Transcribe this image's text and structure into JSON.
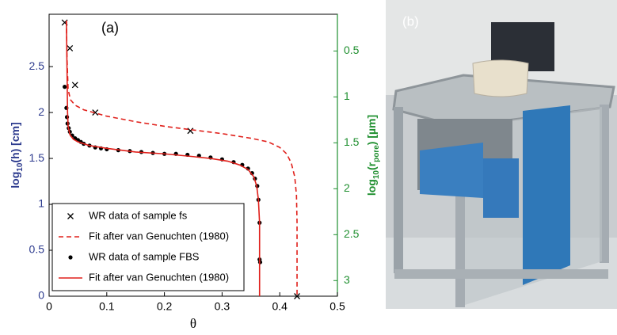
{
  "chart_data": {
    "type": "line",
    "panel_label": "(a)",
    "xlabel": "θ",
    "ylabel_parts": [
      "log",
      "10",
      "(h) [cm]"
    ],
    "y2label_parts": [
      "log",
      "10",
      "(r",
      "pore",
      ") [µm]"
    ],
    "xlim": [
      0,
      0.5
    ],
    "xticks": [
      0,
      0.1,
      0.2,
      0.3,
      0.4,
      0.5
    ],
    "ylim": [
      0,
      3.07
    ],
    "yticks": [
      0,
      0.5,
      1,
      1.5,
      2,
      2.5
    ],
    "y2lim": [
      3.17,
      0.1
    ],
    "y2ticks": [
      0.5,
      1,
      1.5,
      2,
      2.5,
      3
    ],
    "legend": "lower left",
    "series": [
      {
        "name": "WR data of sample fs",
        "color": "#000000",
        "marker": "x",
        "style": "none",
        "x": [
          0.027,
          0.036,
          0.045,
          0.08,
          0.245,
          0.43
        ],
        "values": [
          2.98,
          2.7,
          2.3,
          2.0,
          1.8,
          0.0
        ]
      },
      {
        "name": "Fit after van Genuchten (1980)",
        "color": "#e0201b",
        "marker": "none",
        "style": "dashed",
        "x": [
          0.03,
          0.031,
          0.033,
          0.037,
          0.045,
          0.06,
          0.1,
          0.15,
          0.2,
          0.25,
          0.3,
          0.35,
          0.38,
          0.4,
          0.412,
          0.42,
          0.426,
          0.429,
          0.43,
          0.43
        ],
        "values": [
          3.0,
          2.6,
          2.25,
          2.14,
          2.08,
          2.03,
          1.96,
          1.9,
          1.85,
          1.81,
          1.77,
          1.72,
          1.68,
          1.62,
          1.55,
          1.45,
          1.3,
          1.1,
          0.8,
          0.0
        ]
      },
      {
        "name": "WR data of sample FBS",
        "color": "#000000",
        "marker": "circle",
        "style": "none",
        "x": [
          0.027,
          0.03,
          0.031,
          0.032,
          0.034,
          0.036,
          0.04,
          0.045,
          0.05,
          0.055,
          0.06,
          0.07,
          0.08,
          0.09,
          0.1,
          0.12,
          0.14,
          0.16,
          0.18,
          0.2,
          0.22,
          0.24,
          0.26,
          0.28,
          0.3,
          0.32,
          0.335,
          0.345,
          0.352,
          0.357,
          0.361,
          0.363,
          0.365,
          0.365,
          0.366
        ],
        "values": [
          2.28,
          2.05,
          1.95,
          1.88,
          1.83,
          1.79,
          1.75,
          1.72,
          1.7,
          1.68,
          1.66,
          1.64,
          1.62,
          1.61,
          1.6,
          1.59,
          1.58,
          1.57,
          1.56,
          1.55,
          1.55,
          1.54,
          1.53,
          1.51,
          1.49,
          1.46,
          1.43,
          1.39,
          1.34,
          1.28,
          1.2,
          1.05,
          0.8,
          0.4,
          0.37
        ]
      },
      {
        "name": "Fit after van Genuchten (1980)",
        "color": "#e0201b",
        "marker": "none",
        "style": "solid",
        "x": [
          0.03,
          0.031,
          0.032,
          0.033,
          0.036,
          0.042,
          0.05,
          0.07,
          0.1,
          0.15,
          0.2,
          0.25,
          0.28,
          0.31,
          0.33,
          0.345,
          0.355,
          0.36,
          0.363,
          0.365,
          0.365
        ],
        "values": [
          3.0,
          2.5,
          2.0,
          1.85,
          1.76,
          1.71,
          1.68,
          1.64,
          1.61,
          1.57,
          1.55,
          1.52,
          1.5,
          1.47,
          1.43,
          1.38,
          1.3,
          1.2,
          1.05,
          0.8,
          0.0
        ]
      }
    ]
  },
  "photo": {
    "label": "(b)"
  }
}
